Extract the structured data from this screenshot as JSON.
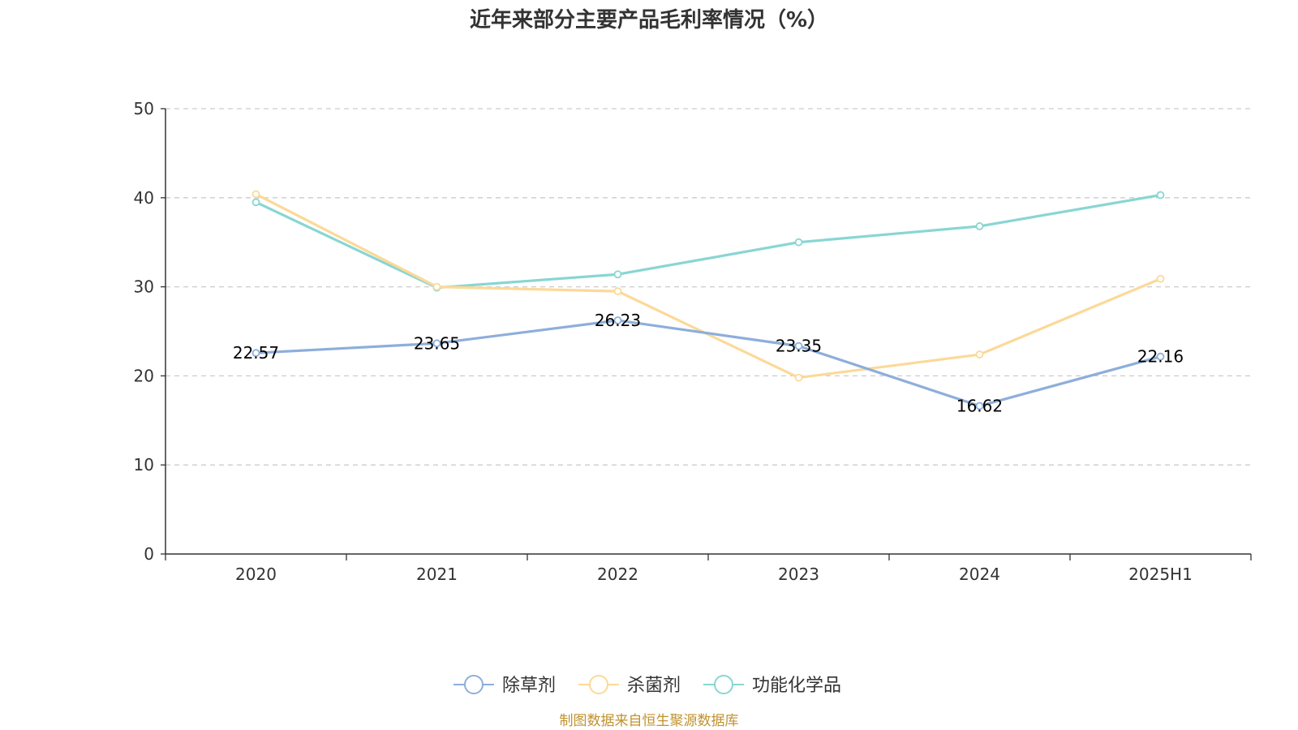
{
  "chart_data": {
    "type": "line",
    "title": "近年来部分主要产品毛利率情况（%）",
    "xlabel": "",
    "ylabel": "",
    "categories": [
      "2020",
      "2021",
      "2022",
      "2023",
      "2024",
      "2025H1"
    ],
    "ylim": [
      0,
      50
    ],
    "yticks": [
      0,
      10,
      20,
      30,
      40,
      50
    ],
    "grid": true,
    "legend_position": "bottom-center",
    "series": [
      {
        "name": "除草剂",
        "color": "#8eaedb",
        "values": [
          22.57,
          23.65,
          26.23,
          23.35,
          16.62,
          22.16
        ],
        "labels": [
          "22.57",
          "23.65",
          "26.23",
          "23.35",
          "16.62",
          "22.16"
        ]
      },
      {
        "name": "杀菌剂",
        "color": "#fcd998",
        "values": [
          40.4,
          30.0,
          29.5,
          19.8,
          22.4,
          30.9
        ]
      },
      {
        "name": "功能化学品",
        "color": "#88d6d3",
        "values": [
          39.5,
          29.9,
          31.4,
          35.0,
          36.8,
          40.3
        ]
      }
    ],
    "source": "制图数据来自恒生聚源数据库",
    "source_color": "#c0922e"
  }
}
